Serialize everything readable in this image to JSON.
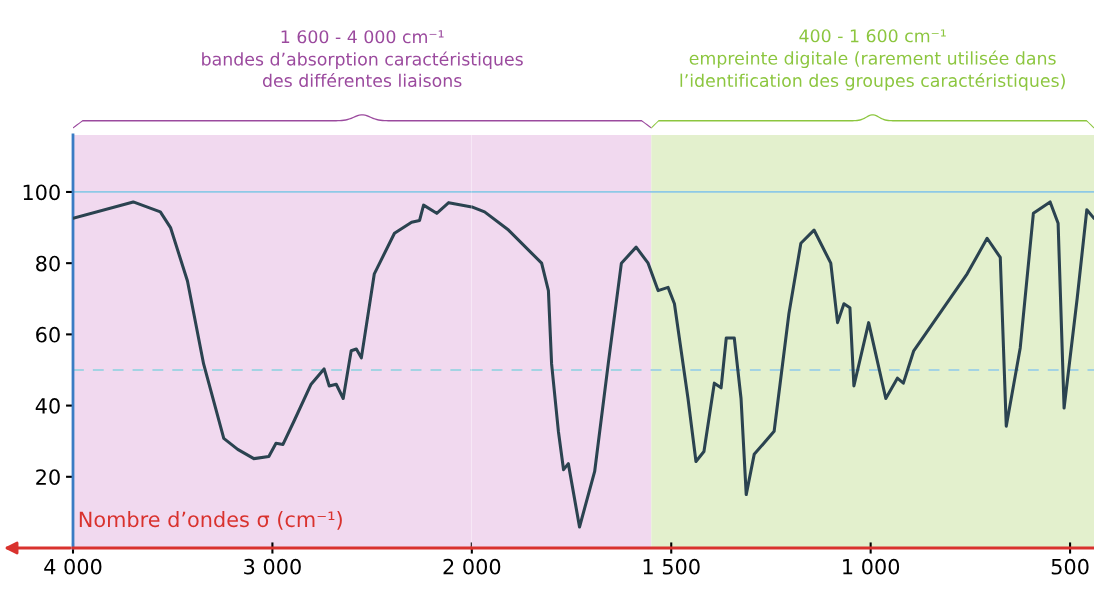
{
  "chart_data": [
    {
      "type": "line",
      "xlabel": "Nombre d’ondes σ (cm⁻¹)",
      "x": [
        4000,
        3698,
        3562,
        3511,
        3426,
        3345,
        3244,
        3174,
        3093,
        3018,
        2982,
        2947,
        2892,
        2806,
        2741,
        2715,
        2680,
        2645,
        2605,
        2579,
        2554,
        2489,
        2388,
        2302,
        2262,
        2242,
        2176,
        2116,
        2000
      ],
      "series": [
        {
          "color": "#2b4350",
          "values": [
            92.6,
            97.2,
            94.4,
            90,
            75,
            51.7,
            30.8,
            27.7,
            25.1,
            25.7,
            29.4,
            29.1,
            35.6,
            46,
            50.3,
            45.5,
            46,
            42,
            55.4,
            55.9,
            53.4,
            77,
            88.4,
            91.5,
            92,
            96.3,
            94,
            97,
            95.8
          ]
        }
      ],
      "xlim": [
        4000,
        2000
      ],
      "xticks": [
        {
          "value": 4000,
          "label": "4 000"
        },
        {
          "value": 3000,
          "label": "3 000"
        },
        {
          "value": 2000,
          "label": "2 000"
        }
      ],
      "ylim": [
        0,
        116
      ],
      "yticks": [
        20,
        40,
        60,
        80,
        100
      ],
      "ref_lines": [
        {
          "axis": "y",
          "value": 100,
          "color": "#8ec9e6",
          "line_style": "solid"
        },
        {
          "axis": "y",
          "value": 50,
          "color": "#a3d3e3",
          "line_style": "dashed"
        }
      ],
      "bands": [
        {
          "axis": "x",
          "from": 4000,
          "to": 2000,
          "color": "#f1d9ef",
          "label": "1 600 - 4 000 cm⁻¹\nbandes d’absorption caractéristiques\ndes différentes liaisons"
        }
      ],
      "grid": false,
      "legend": false,
      "marker": "none",
      "line_style": "solid"
    },
    {
      "type": "line",
      "x": [
        2000,
        1968,
        1908,
        1825,
        1808,
        1800,
        1783,
        1770,
        1758,
        1730,
        1692,
        1658,
        1625,
        1588,
        1558,
        1533,
        1508,
        1492,
        1458,
        1438,
        1418,
        1392,
        1375,
        1362,
        1342,
        1325,
        1312,
        1292,
        1242,
        1205,
        1175,
        1142,
        1100,
        1083,
        1067,
        1052,
        1042,
        1005,
        962,
        933,
        918,
        892,
        758,
        708,
        675,
        660,
        625,
        592,
        550,
        530,
        515,
        482,
        458,
        440
      ],
      "series": [
        {
          "color": "#2b4350",
          "values": [
            95.8,
            94.4,
            89.3,
            80,
            72.3,
            51.7,
            32.8,
            22,
            23.7,
            5.9,
            21.5,
            51.7,
            80,
            84.5,
            80,
            72.3,
            73.2,
            68.6,
            42,
            24.3,
            27.1,
            46.3,
            45,
            59,
            59,
            42,
            15,
            26.3,
            32.8,
            65.8,
            85.6,
            89.3,
            80,
            63.3,
            68.6,
            67.5,
            45.5,
            63.3,
            42,
            47.7,
            46.3,
            55.4,
            77,
            87,
            81.6,
            34.2,
            56.2,
            94,
            97.2,
            91.2,
            39.3,
            70.3,
            95,
            92.6
          ]
        }
      ],
      "xlim": [
        2000,
        440
      ],
      "xticks": [
        {
          "value": 1500,
          "label": "1 500"
        },
        {
          "value": 1000,
          "label": "1 000"
        },
        500
      ],
      "ylim": [
        0,
        116
      ],
      "tick_labels": "x",
      "ref_lines": [
        {
          "axis": "y",
          "value": 100,
          "color": "#8ec9e6",
          "line_style": "solid"
        },
        {
          "axis": "y",
          "value": 50,
          "color": "#a3d3e3",
          "line_style": "dashed"
        }
      ],
      "bands": [
        {
          "axis": "x",
          "from": 2000,
          "to": 1550,
          "color": "#f1d9ef"
        },
        {
          "axis": "x",
          "from": 1550,
          "to": 440,
          "color": "#e3f0cd",
          "label": "400 - 1 600 cm⁻¹\nempreinte digitale (rarement utilisée dans\nl’identification des groupes caractéristiques)"
        }
      ],
      "grid": false,
      "legend": false,
      "marker": "none",
      "line_style": "solid"
    }
  ]
}
